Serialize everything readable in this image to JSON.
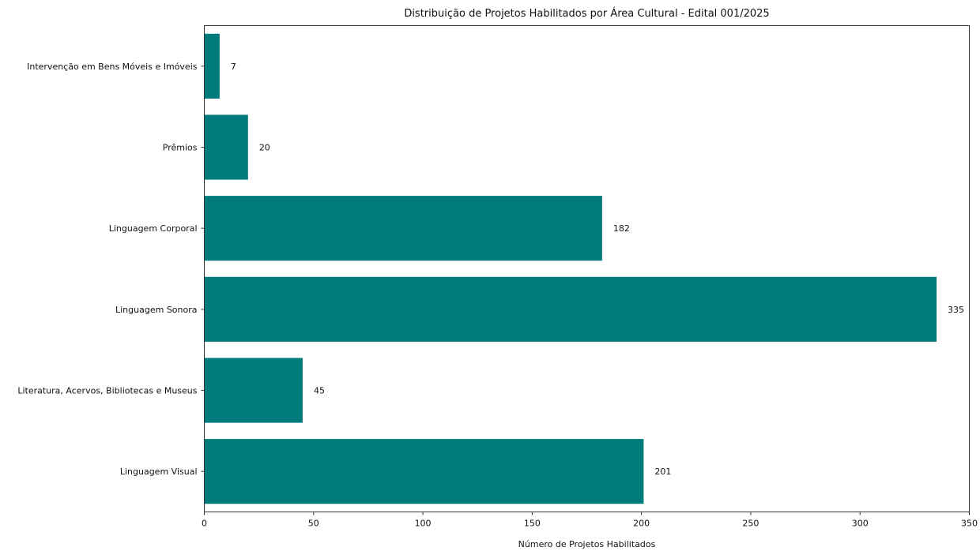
{
  "chart_data": {
    "type": "bar",
    "orientation": "horizontal",
    "title": "Distribuição de Projetos Habilitados por Área Cultural - Edital 001/2025",
    "xlabel": "Número de Projetos Habilitados",
    "ylabel": "",
    "categories": [
      "Linguagem Visual",
      "Literatura, Acervos, Bibliotecas e Museus",
      "Linguagem Sonora",
      "Linguagem Corporal",
      "Prêmios",
      "Intervenção em Bens Móveis e Imóveis"
    ],
    "values": [
      201,
      45,
      335,
      182,
      20,
      7
    ],
    "data_labels": [
      "201",
      "45",
      "335",
      "182",
      "20",
      "7"
    ],
    "xlim": [
      0,
      350
    ],
    "xticks": [
      0,
      50,
      100,
      150,
      200,
      250,
      300,
      350
    ],
    "xtick_labels": [
      "0",
      "50",
      "100",
      "150",
      "200",
      "250",
      "300",
      "350"
    ],
    "grid": false,
    "bar_color": "#007b7b"
  }
}
